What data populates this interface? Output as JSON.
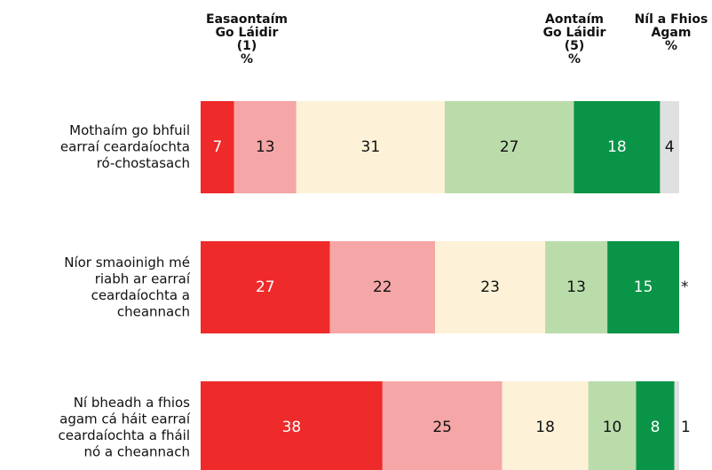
{
  "chart_data": {
    "type": "stacked-bar-horizontal",
    "categories": [
      [
        "Mothaím go bhfuil",
        "earraí ceardaíochta",
        "ró-chostasach"
      ],
      [
        "Níor smaoinigh mé",
        "riabh ar earraí",
        "ceardaíochta a",
        "cheannach"
      ],
      [
        "Ní bheadh a fhios",
        "agam cá háit earraí",
        "ceardaíochta a fháil",
        "nó a cheannach"
      ]
    ],
    "unit": "%",
    "xlim": [
      0,
      100
    ],
    "series": [
      {
        "name": [
          "Easaontaím",
          "Go Láidir",
          "(1)"
        ],
        "color": "#ee2a2a",
        "values": [
          7,
          27,
          38
        ]
      },
      {
        "name": null,
        "color": "#f5a6a6",
        "values": [
          13,
          22,
          25
        ]
      },
      {
        "name": null,
        "color": "#fdf2d8",
        "values": [
          31,
          23,
          18
        ]
      },
      {
        "name": null,
        "color": "#badcab",
        "values": [
          27,
          13,
          10
        ]
      },
      {
        "name": [
          "Aontaím",
          "Go Láidir",
          "(5)"
        ],
        "color": "#0a9447",
        "values": [
          18,
          15,
          8
        ]
      },
      {
        "name": [
          "Níl a Fhios",
          "Agam"
        ],
        "color": "#e0e0e0",
        "values": [
          4,
          0,
          1
        ],
        "value_labels": [
          null,
          "*",
          null
        ]
      }
    ]
  }
}
